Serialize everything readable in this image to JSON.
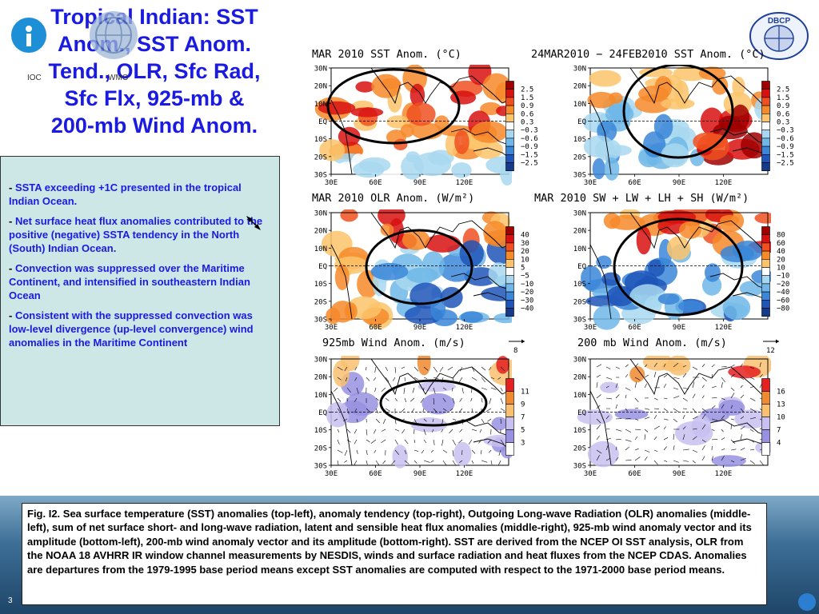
{
  "title_lines": [
    "Tropical Indian: SST",
    "Anom., SST Anom.",
    "Tend., OLR, Sfc Rad,",
    "Sfc Flx, 925-mb &",
    "200-mb Wind Anom."
  ],
  "logos": {
    "left_label": "IOC",
    "center_label": "WMO",
    "right_label": "DBCP"
  },
  "bullets": [
    "SSTA exceeding +1C presented in the tropical Indian Ocean.",
    "Net surface heat flux anomalies contributed to the positive (negative) SSTA tendency in the North (South) Indian Ocean.",
    "Convection was suppressed over the Maritime Continent, and intensified in southeastern Indian Ocean",
    "Consistent with the suppressed convection was low-level divergence (up-level convergence) wind anomalies in the Maritime Continent"
  ],
  "map_axes": {
    "lat_labels": [
      "30N",
      "20N",
      "10N",
      "EQ",
      "10S",
      "20S",
      "30S"
    ],
    "lon_labels": [
      "30E",
      "60E",
      "90E",
      "120E"
    ]
  },
  "panels": [
    {
      "title": "MAR 2010 SST Anom. (°C)",
      "scale": [
        "2.5",
        "1.5",
        "0.9",
        "0.6",
        "0.3",
        "−0.3",
        "−0.6",
        "−0.9",
        "−1.5",
        "−2.5"
      ],
      "colors": [
        "#a00000",
        "#d81010",
        "#f05020",
        "#f68a2a",
        "#fbc46b",
        "#ffffff",
        "#a8d8f0",
        "#6fb7e8",
        "#3a86d8",
        "#1f55b8",
        "#153a8a"
      ],
      "hatching": false
    },
    {
      "title": "24MAR2010 − 24FEB2010 SST Anom. (°C)",
      "scale": [
        "2.5",
        "1.5",
        "0.9",
        "0.6",
        "0.3",
        "−0.3",
        "−0.6",
        "−0.9",
        "−1.5",
        "−2.5"
      ],
      "colors": [
        "#a00000",
        "#d81010",
        "#f05020",
        "#f68a2a",
        "#fbc46b",
        "#ffffff",
        "#a8d8f0",
        "#6fb7e8",
        "#3a86d8",
        "#1f55b8",
        "#153a8a"
      ],
      "hatching": false
    },
    {
      "title": "MAR 2010 OLR Anom. (W/m²)",
      "scale": [
        "40",
        "30",
        "20",
        "10",
        "5",
        "−5",
        "−10",
        "−20",
        "−30",
        "−40"
      ],
      "colors": [
        "#a00000",
        "#d81010",
        "#f05020",
        "#f68a2a",
        "#fbc46b",
        "#ffffff",
        "#a8d8f0",
        "#6fb7e8",
        "#3a86d8",
        "#1f55b8",
        "#153a8a"
      ],
      "hatching": false
    },
    {
      "title": "MAR 2010 SW + LW + LH + SH (W/m²)",
      "scale": [
        "80",
        "60",
        "40",
        "20",
        "10",
        "−10",
        "−20",
        "−40",
        "−60",
        "−80"
      ],
      "colors": [
        "#a00000",
        "#d81010",
        "#f05020",
        "#f68a2a",
        "#fbc46b",
        "#ffffff",
        "#a8d8f0",
        "#6fb7e8",
        "#3a86d8",
        "#1f55b8",
        "#153a8a"
      ],
      "hatching": false
    },
    {
      "title": "925mb Wind Anom. (m/s)",
      "scale": [
        "11",
        "9",
        "7",
        "5",
        "3"
      ],
      "colors": [
        "#e52020",
        "#f08a30",
        "#f8c070",
        "#c8c0f0",
        "#9890e0",
        "#ffffff"
      ],
      "vector_ref": "8",
      "hatching": true
    },
    {
      "title": "200 mb Wind Anom. (m/s)",
      "scale": [
        "16",
        "13",
        "10",
        "7",
        "4"
      ],
      "colors": [
        "#e52020",
        "#f08a30",
        "#f8c070",
        "#c8c0f0",
        "#9890e0",
        "#ffffff"
      ],
      "vector_ref": "12",
      "hatching": true
    }
  ],
  "caption": "Fig. I2. Sea surface temperature (SST) anomalies (top-left), anomaly tendency (top-right), Outgoing Long-wave Radiation (OLR) anomalies (middle-left), sum of net surface short- and long-wave radiation, latent and sensible heat flux anomalies (middle-right), 925-mb wind anomaly vector and its amplitude (bottom-left), 200-mb wind anomaly vector and its amplitude  (bottom-right). SST are derived from the NCEP OI SST analysis, OLR from the NOAA 18 AVHRR IR window channel measurements by NESDIS, winds and surface radiation and heat fluxes from the NCEP CDAS. Anomalies are  departures from the 1979-1995 base period means except SST anomalies are computed with respect to the 1971-2000 base period means.",
  "page_number": "3"
}
